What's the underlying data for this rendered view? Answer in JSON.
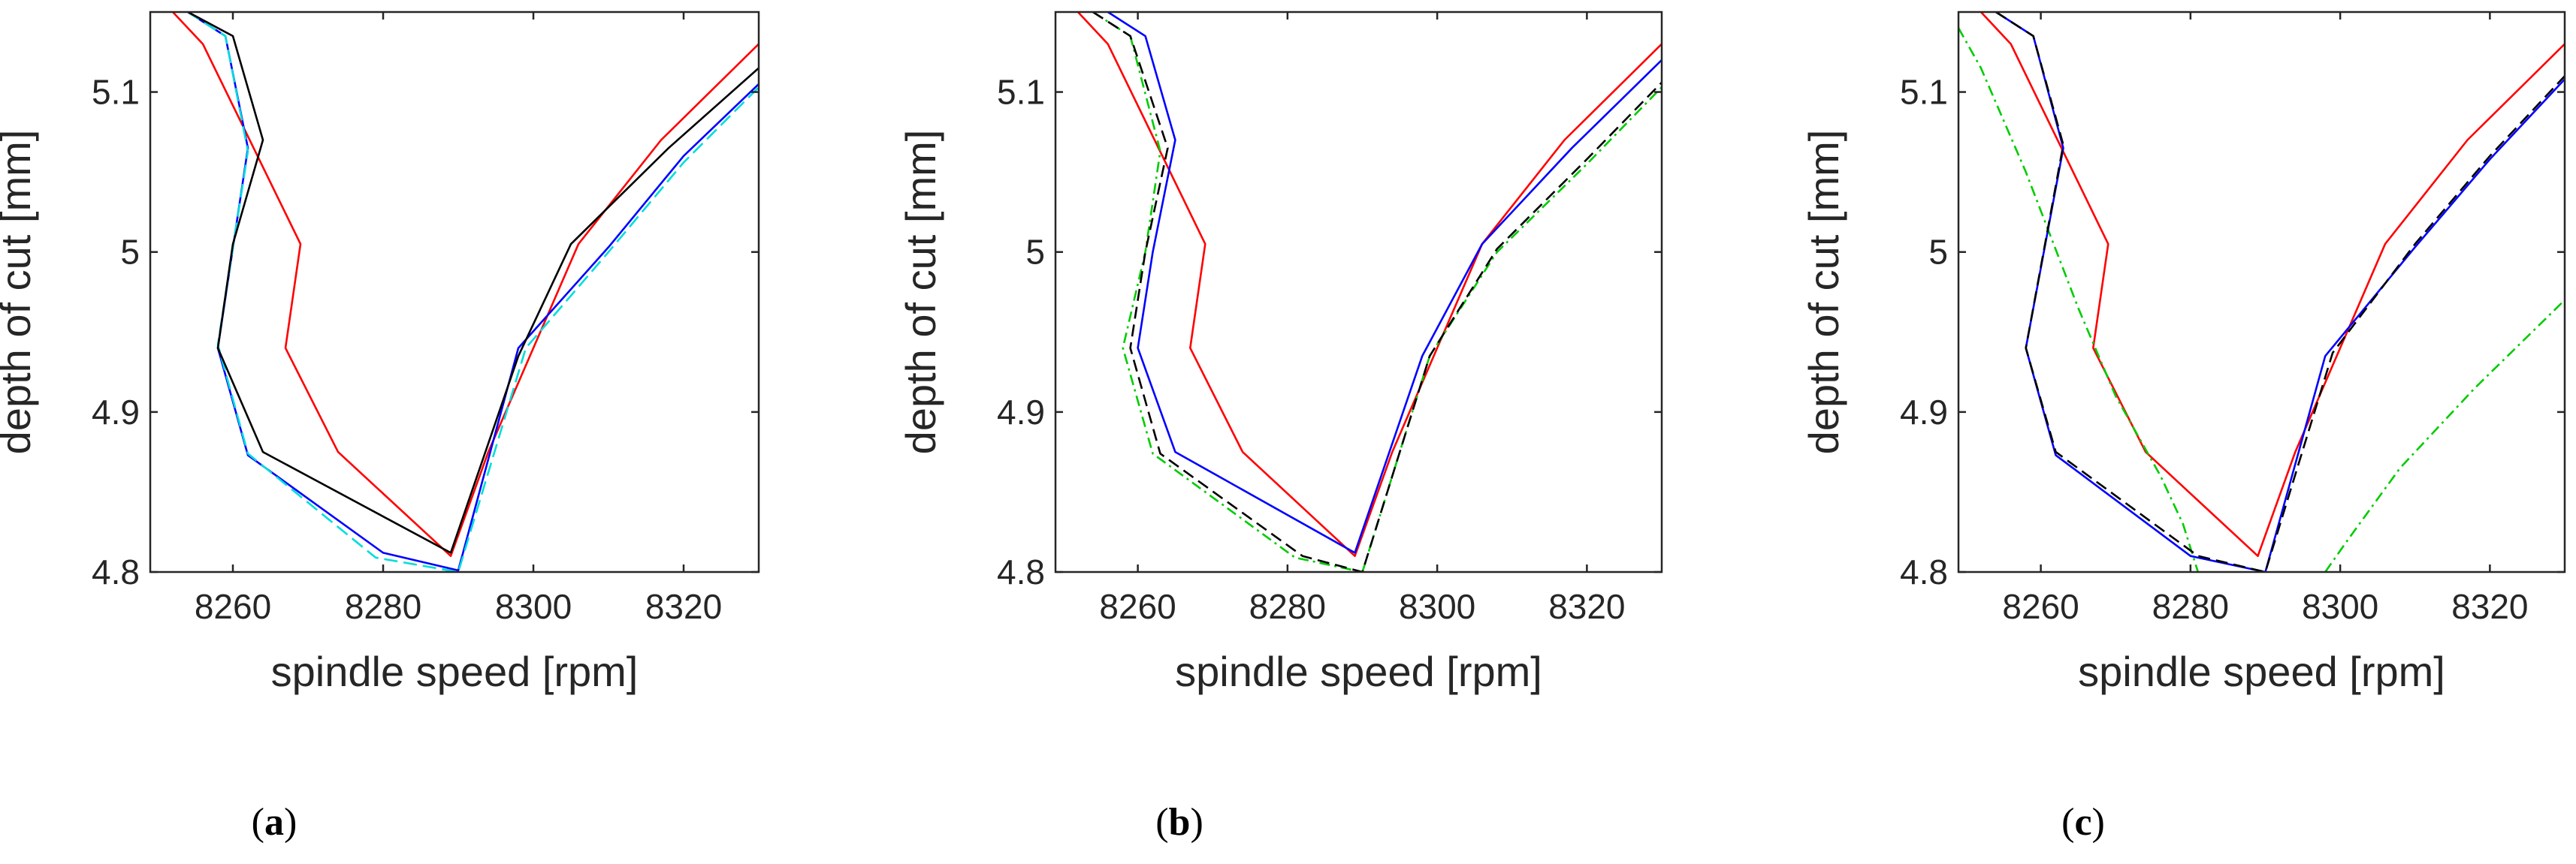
{
  "figure": {
    "panel_labels": [
      {
        "open": "(",
        "letter": "a",
        "close": ")"
      },
      {
        "open": "(",
        "letter": "b",
        "close": ")"
      },
      {
        "open": "(",
        "letter": "c",
        "close": ")"
      }
    ]
  },
  "chart_data": [
    {
      "type": "line",
      "xlabel": "spindle speed [rpm]",
      "ylabel": "depth of cut [mm]",
      "xlim": [
        8249,
        8330
      ],
      "ylim": [
        4.8,
        5.15
      ],
      "xticks": [
        8260,
        8280,
        8300,
        8320
      ],
      "yticks": [
        4.8,
        4.9,
        5,
        5.1
      ],
      "ytick_labels": [
        "4.8",
        "4.9",
        "5",
        "5.1"
      ],
      "series": [
        {
          "name": "red",
          "color": "#ff0000",
          "dash": "",
          "width": 2.6,
          "x": [
            8252,
            8256,
            8269,
            8267,
            8274,
            8289,
            8294,
            8306,
            8317,
            8330
          ],
          "y": [
            5.15,
            5.13,
            5.005,
            4.94,
            4.875,
            4.81,
            4.875,
            5.005,
            5.07,
            5.13
          ]
        },
        {
          "name": "blue",
          "color": "#0000ff",
          "dash": "",
          "width": 2.6,
          "x": [
            8254,
            8259,
            8262,
            8258,
            8262,
            8280,
            8290,
            8298,
            8310,
            8320,
            8330
          ],
          "y": [
            5.15,
            5.135,
            5.065,
            4.94,
            4.873,
            4.812,
            4.801,
            4.94,
            5.003,
            5.06,
            5.105
          ]
        },
        {
          "name": "cyan",
          "color": "#00dddd",
          "dash": "18 8",
          "width": 2.6,
          "x": [
            8254,
            8259,
            8262,
            8258,
            8262,
            8279,
            8290,
            8299,
            8310,
            8320,
            8330
          ],
          "y": [
            5.15,
            5.135,
            5.063,
            4.942,
            4.874,
            4.809,
            4.8,
            4.94,
            5.0,
            5.056,
            5.103
          ]
        },
        {
          "name": "black",
          "color": "#000000",
          "dash": "",
          "width": 2.6,
          "x": [
            8254,
            8260,
            8264,
            8260,
            8258,
            8264,
            8289,
            8298,
            8305,
            8318,
            8330
          ],
          "y": [
            5.15,
            5.135,
            5.07,
            5.005,
            4.94,
            4.875,
            4.812,
            4.935,
            5.005,
            5.065,
            5.115
          ]
        }
      ]
    },
    {
      "type": "line",
      "xlabel": "spindle speed [rpm]",
      "ylabel": "depth of cut [mm]",
      "xlim": [
        8249,
        8330
      ],
      "ylim": [
        4.8,
        5.15
      ],
      "xticks": [
        8260,
        8280,
        8300,
        8320
      ],
      "yticks": [
        4.8,
        4.9,
        5,
        5.1
      ],
      "ytick_labels": [
        "4.8",
        "4.9",
        "5",
        "5.1"
      ],
      "series": [
        {
          "name": "red",
          "color": "#ff0000",
          "dash": "",
          "width": 2.6,
          "x": [
            8252,
            8256,
            8269,
            8267,
            8274,
            8289,
            8294,
            8306,
            8317,
            8330
          ],
          "y": [
            5.15,
            5.13,
            5.005,
            4.94,
            4.875,
            4.81,
            4.875,
            5.005,
            5.07,
            5.13
          ]
        },
        {
          "name": "blue",
          "color": "#0000ff",
          "dash": "",
          "width": 2.6,
          "x": [
            8256,
            8261,
            8265,
            8262,
            8260,
            8265,
            8289,
            8298,
            8306,
            8318,
            8330
          ],
          "y": [
            5.15,
            5.135,
            5.07,
            5.0,
            4.94,
            4.875,
            4.812,
            4.935,
            5.005,
            5.065,
            5.12
          ]
        },
        {
          "name": "green",
          "color": "#00cc00",
          "dash": "14 6 3 6",
          "width": 2.6,
          "x": [
            8254,
            8259,
            8263,
            8261,
            8258,
            8262,
            8281,
            8290,
            8299,
            8308,
            8320,
            8330
          ],
          "y": [
            5.15,
            5.135,
            5.063,
            5.0,
            4.94,
            4.874,
            4.809,
            4.8,
            4.935,
            5.0,
            5.055,
            5.103
          ]
        },
        {
          "name": "black",
          "color": "#000000",
          "dash": "16 8",
          "width": 2.6,
          "x": [
            8254,
            8259,
            8264,
            8261,
            8259,
            8263,
            8282,
            8290,
            8299,
            8308,
            8320,
            8330
          ],
          "y": [
            5.15,
            5.135,
            5.065,
            5.0,
            4.94,
            4.874,
            4.81,
            4.8,
            4.935,
            5.002,
            5.058,
            5.106
          ]
        }
      ]
    },
    {
      "type": "line",
      "xlabel": "spindle speed [rpm]",
      "ylabel": "depth of cut [mm]",
      "xlim": [
        8249,
        8330
      ],
      "ylim": [
        4.8,
        5.15
      ],
      "xticks": [
        8260,
        8280,
        8300,
        8320
      ],
      "yticks": [
        4.8,
        4.9,
        5,
        5.1
      ],
      "ytick_labels": [
        "4.8",
        "4.9",
        "5",
        "5.1"
      ],
      "series": [
        {
          "name": "red",
          "color": "#ff0000",
          "dash": "",
          "width": 2.6,
          "x": [
            8252,
            8256,
            8269,
            8267,
            8274,
            8289,
            8294,
            8306,
            8317,
            8330
          ],
          "y": [
            5.15,
            5.13,
            5.005,
            4.94,
            4.875,
            4.81,
            4.875,
            5.005,
            5.07,
            5.13
          ]
        },
        {
          "name": "green",
          "color": "#00cc00",
          "dash": "14 6 3 6",
          "width": 2.6,
          "x": [
            8249,
            8252,
            8258,
            8265,
            8270,
            8276,
            8279,
            8281
          ],
          "y": [
            5.14,
            5.115,
            5.05,
            4.965,
            4.91,
            4.86,
            4.83,
            4.8
          ]
        },
        {
          "name": "green-right",
          "color": "#00cc00",
          "dash": "14 6 3 6",
          "width": 2.6,
          "x": [
            8298,
            8301,
            8308,
            8318,
            8330
          ],
          "y": [
            4.8,
            4.82,
            4.865,
            4.915,
            4.97
          ]
        },
        {
          "name": "blue",
          "color": "#0000ff",
          "dash": "",
          "width": 2.6,
          "x": [
            8254,
            8259,
            8263,
            8258,
            8262,
            8280,
            8290,
            8298,
            8310,
            8320,
            8330
          ],
          "y": [
            5.15,
            5.135,
            5.065,
            4.94,
            4.873,
            4.81,
            4.8,
            4.935,
            5.003,
            5.058,
            5.108
          ]
        },
        {
          "name": "black",
          "color": "#000000",
          "dash": "16 8",
          "width": 2.6,
          "x": [
            8254,
            8259,
            8263,
            8258,
            8262,
            8281,
            8290,
            8299,
            8310,
            8320,
            8330
          ],
          "y": [
            5.15,
            5.135,
            5.067,
            4.94,
            4.875,
            4.81,
            4.8,
            4.937,
            5.005,
            5.06,
            5.11
          ]
        }
      ]
    }
  ]
}
